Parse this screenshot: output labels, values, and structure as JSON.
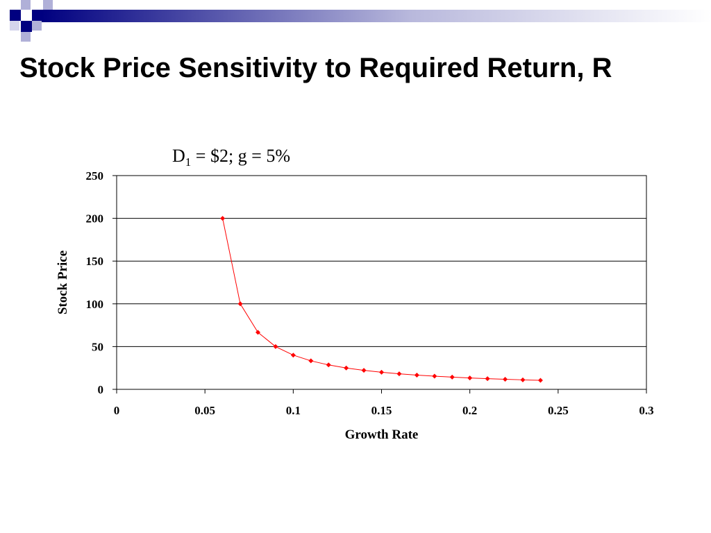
{
  "slide": {
    "title": "Stock Price Sensitivity to Required Return, R"
  },
  "chart_data": {
    "type": "line",
    "subtitle_main": "D",
    "subtitle_sub": "1",
    "subtitle_rest": " = $2; g = 5%",
    "xlabel": "Growth Rate",
    "ylabel": "Stock Price",
    "xlim": [
      0,
      0.3
    ],
    "ylim": [
      0,
      250
    ],
    "x_ticks": [
      "0",
      "0.05",
      "0.1",
      "0.15",
      "0.2",
      "0.25",
      "0.3"
    ],
    "y_ticks": [
      "0",
      "50",
      "100",
      "150",
      "200",
      "250"
    ],
    "grid": "horizontal",
    "series": [
      {
        "color": "#ff0000",
        "x": [
          0.06,
          0.07,
          0.08,
          0.09,
          0.1,
          0.11,
          0.12,
          0.13,
          0.14,
          0.15,
          0.16,
          0.17,
          0.18,
          0.19,
          0.2,
          0.21,
          0.22,
          0.23,
          0.24
        ],
        "y": [
          200,
          100,
          66.67,
          50,
          40,
          33.33,
          28.57,
          25,
          22.22,
          20,
          18.18,
          16.67,
          15.38,
          14.29,
          13.33,
          12.5,
          11.76,
          11.11,
          10.53
        ]
      }
    ]
  }
}
